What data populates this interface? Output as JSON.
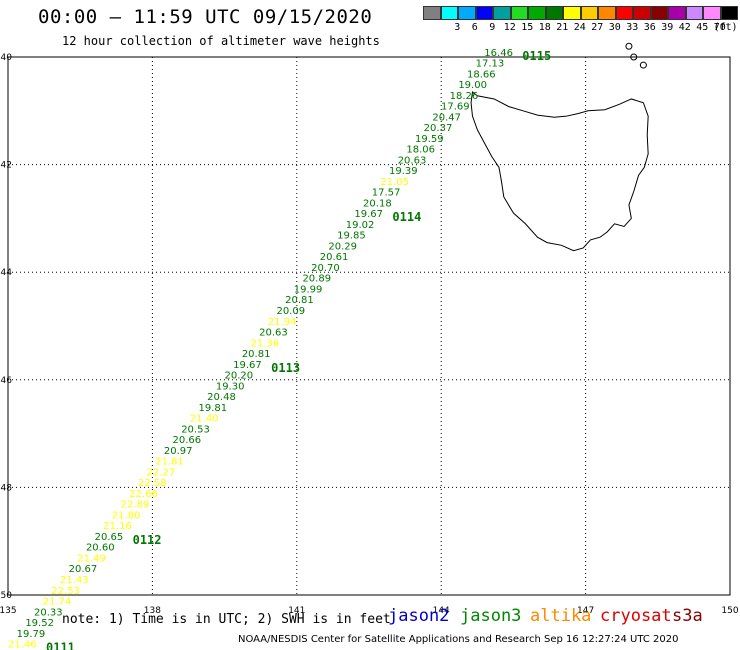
{
  "header": {
    "title": "00:00 – 11:59 UTC 09/15/2020",
    "subtitle": "12 hour collection of altimeter wave heights"
  },
  "colorbar": {
    "swatches": [
      {
        "label": "",
        "color": "#808080"
      },
      {
        "label": "3",
        "color": "#00ffff"
      },
      {
        "label": "6",
        "color": "#00aaff"
      },
      {
        "label": "9",
        "color": "#0000ff"
      },
      {
        "label": "12",
        "color": "#00a0a0"
      },
      {
        "label": "15",
        "color": "#22dd22"
      },
      {
        "label": "18",
        "color": "#00aa00"
      },
      {
        "label": "21",
        "color": "#007700"
      },
      {
        "label": "24",
        "color": "#ffff00"
      },
      {
        "label": "27",
        "color": "#ffcc00"
      },
      {
        "label": "30",
        "color": "#ff8800"
      },
      {
        "label": "33",
        "color": "#ff0000"
      },
      {
        "label": "36",
        "color": "#cc0000"
      },
      {
        "label": "39",
        "color": "#880000"
      },
      {
        "label": "42",
        "color": "#aa00aa"
      },
      {
        "label": "45",
        "color": "#cc88ff"
      },
      {
        "label": "70",
        "color": "#ff88ff"
      },
      {
        "label": "",
        "color": "#000000"
      }
    ],
    "unit": "(ft)"
  },
  "axes": {
    "x_ticks": [
      "135",
      "138",
      "141",
      "144",
      "147",
      "150"
    ],
    "y_ticks": [
      "-40",
      "-42",
      "-44",
      "-46",
      "-48",
      "-50"
    ]
  },
  "map": {
    "lon_range": [
      135,
      150
    ],
    "lat_range": [
      -50,
      -40
    ],
    "land": "Tasmania"
  },
  "track": {
    "color_green": "#007700",
    "color_yellow": "#ffff00",
    "labels": [
      {
        "v": "16.46",
        "lat": -40.2,
        "c": "g"
      },
      {
        "v": "17.13",
        "lat": -40.4,
        "c": "g"
      },
      {
        "v": "18.66",
        "lat": -40.6,
        "c": "g"
      },
      {
        "v": "19.00",
        "lat": -40.8,
        "c": "g"
      },
      {
        "v": "18.26",
        "lat": -41.0,
        "c": "g"
      },
      {
        "v": "17.69",
        "lat": -41.2,
        "c": "g"
      },
      {
        "v": "20.47",
        "lat": -41.4,
        "c": "g"
      },
      {
        "v": "20.37",
        "lat": -41.6,
        "c": "g"
      },
      {
        "v": "19.59",
        "lat": -41.8,
        "c": "g"
      },
      {
        "v": "18.06",
        "lat": -42.0,
        "c": "g"
      },
      {
        "v": "20.63",
        "lat": -42.2,
        "c": "g"
      },
      {
        "v": "19.39",
        "lat": -42.4,
        "c": "g"
      },
      {
        "v": "21.05",
        "lat": -42.6,
        "c": "y"
      },
      {
        "v": "17.57",
        "lat": -42.8,
        "c": "g"
      },
      {
        "v": "20.18",
        "lat": -43.0,
        "c": "g"
      },
      {
        "v": "19.67",
        "lat": -43.2,
        "c": "g"
      },
      {
        "v": "19.02",
        "lat": -43.4,
        "c": "g"
      },
      {
        "v": "19.85",
        "lat": -43.6,
        "c": "g"
      },
      {
        "v": "20.29",
        "lat": -43.8,
        "c": "g"
      },
      {
        "v": "20.61",
        "lat": -44.0,
        "c": "g"
      },
      {
        "v": "20.70",
        "lat": -44.2,
        "c": "g"
      },
      {
        "v": "20.89",
        "lat": -44.4,
        "c": "g"
      },
      {
        "v": "19.99",
        "lat": -44.6,
        "c": "g"
      },
      {
        "v": "20.81",
        "lat": -44.8,
        "c": "g"
      },
      {
        "v": "20.09",
        "lat": -45.0,
        "c": "g"
      },
      {
        "v": "21.94",
        "lat": -45.2,
        "c": "y"
      },
      {
        "v": "20.63",
        "lat": -45.4,
        "c": "g"
      },
      {
        "v": "21.36",
        "lat": -45.6,
        "c": "y"
      },
      {
        "v": "20.81",
        "lat": -45.8,
        "c": "g"
      },
      {
        "v": "19.67",
        "lat": -46.0,
        "c": "g"
      },
      {
        "v": "20.20",
        "lat": -46.2,
        "c": "g"
      },
      {
        "v": "19.30",
        "lat": -46.4,
        "c": "g"
      },
      {
        "v": "20.48",
        "lat": -46.6,
        "c": "g"
      },
      {
        "v": "19.81",
        "lat": -46.8,
        "c": "g"
      },
      {
        "v": "21.40",
        "lat": -47.0,
        "c": "y"
      },
      {
        "v": "20.53",
        "lat": -47.2,
        "c": "g"
      },
      {
        "v": "20.66",
        "lat": -47.4,
        "c": "g"
      },
      {
        "v": "20.97",
        "lat": -47.6,
        "c": "g"
      },
      {
        "v": "21.81",
        "lat": -47.8,
        "c": "y"
      },
      {
        "v": "22.27",
        "lat": -48.0,
        "c": "y"
      },
      {
        "v": "22.58",
        "lat": -48.2,
        "c": "y"
      },
      {
        "v": "22.66",
        "lat": -48.4,
        "c": "y"
      },
      {
        "v": "22.89",
        "lat": -48.6,
        "c": "y"
      },
      {
        "v": "21.80",
        "lat": -48.8,
        "c": "y"
      },
      {
        "v": "21.16",
        "lat": -49.0,
        "c": "y"
      },
      {
        "v": "20.65",
        "lat": -49.2,
        "c": "g"
      },
      {
        "v": "20.60",
        "lat": -49.4,
        "c": "g"
      },
      {
        "v": "21.49",
        "lat": -49.6,
        "c": "y"
      },
      {
        "v": "20.67",
        "lat": -49.8,
        "c": "g"
      },
      {
        "v": "21.43",
        "lat": -50.0,
        "c": "y"
      },
      {
        "v": "22.53",
        "lat": -50.2,
        "c": "y"
      },
      {
        "v": "21.74",
        "lat": -50.4,
        "c": "y"
      },
      {
        "v": "20.33",
        "lat": -50.6,
        "c": "g"
      },
      {
        "v": "19.52",
        "lat": -50.8,
        "c": "g"
      },
      {
        "v": "19.79",
        "lat": -51.0,
        "c": "g"
      },
      {
        "v": "21.46",
        "lat": -51.2,
        "c": "y"
      }
    ],
    "passes": [
      {
        "label": "0115",
        "lat": -40.2
      },
      {
        "label": "0114",
        "lat": -43.2
      },
      {
        "label": "0113",
        "lat": -46.0
      },
      {
        "label": "0112",
        "lat": -49.2
      },
      {
        "label": "0111",
        "lat": -51.2
      }
    ]
  },
  "legend": {
    "note": "note: 1) Time is in UTC; 2) SWH is in feet",
    "satellites": [
      {
        "name": "jason2",
        "color": "#0000cc"
      },
      {
        "name": "jason3",
        "color": "#008800"
      },
      {
        "name": "altika",
        "color": "#ff8800"
      },
      {
        "name": "cryosat",
        "color": "#dd0000"
      },
      {
        "name": "s3a",
        "color": "#880000"
      }
    ]
  },
  "footer": {
    "credit": "NOAA/NESDIS Center for Satellite Applications and Research   Sep 16 12:27:24 UTC 2020"
  }
}
